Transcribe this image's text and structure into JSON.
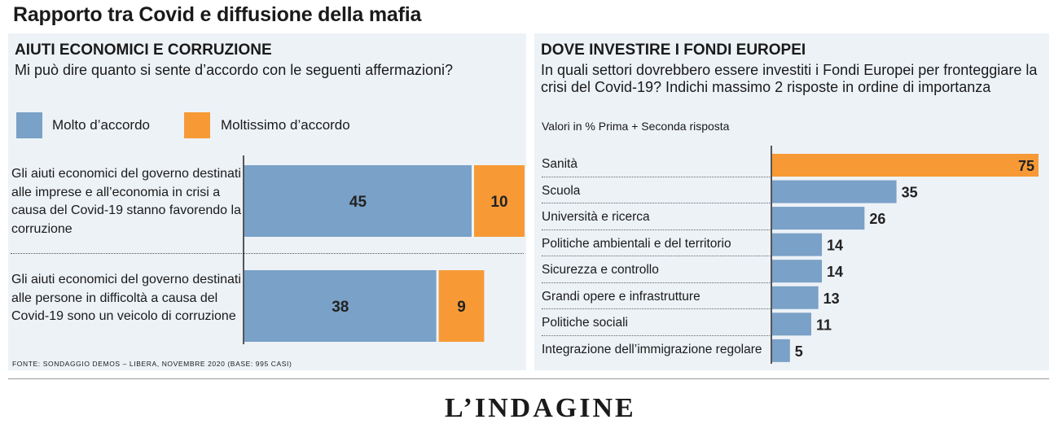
{
  "header": {
    "title": "Rapporto tra Covid e diffusione della mafia"
  },
  "colors": {
    "blue": "#7aa1c7",
    "orange": "#f79a36",
    "panel_bg": "#edf2f7"
  },
  "left": {
    "title": "AIUTI ECONOMICI E CORRUZIONE",
    "subtitle": "Mi può dire quanto si sente d’accordo con le seguenti affermazioni?",
    "source": "FONTE: SONDAGGIO DEMOS – LIBERA, NOVEMBRE 2020 (BASE: 995 CASI)"
  },
  "right": {
    "title": "DOVE INVESTIRE I FONDI EUROPEI",
    "subtitle": "In quali settori dovrebbero essere investiti i Fondi Europei per fronteggiare la crisi del Covid-19? Indichi massimo 2 risposte in ordine di importanza",
    "note": "Valori in % Prima + Seconda risposta"
  },
  "footer": {
    "cut_text": "L’INDAGINE"
  },
  "chart_data": [
    {
      "type": "bar",
      "orientation": "horizontal",
      "stacked": true,
      "title": "AIUTI ECONOMICI E CORRUZIONE",
      "subtitle": "Mi può dire quanto si sente d’accordo con le seguenti affermazioni?",
      "legend": "top-left",
      "categories": [
        "Gli aiuti economici del governo destinati alle imprese e all’economia in crisi a causa del Covid-19 stanno favorendo la corruzione",
        "Gli aiuti economici del governo destinati alle persone in difficoltà a causa del Covid-19 sono un veicolo di corruzione"
      ],
      "series": [
        {
          "name": "Molto d’accordo",
          "color": "#7aa1c7",
          "values": [
            45,
            38
          ]
        },
        {
          "name": "Moltissimo d’accordo",
          "color": "#f79a36",
          "values": [
            10,
            9
          ]
        }
      ]
    },
    {
      "type": "bar",
      "orientation": "horizontal",
      "title": "DOVE INVESTIRE I FONDI EUROPEI",
      "categories": [
        "Sanità",
        "Scuola",
        "Università e ricerca",
        "Politiche ambientali e del territorio",
        "Sicurezza e controllo",
        "Grandi opere e infrastrutture",
        "Politiche sociali",
        "Integrazione dell’immigrazione regolare"
      ],
      "values": [
        75,
        35,
        26,
        14,
        14,
        13,
        11,
        5
      ],
      "highlight_index": 0,
      "colors": {
        "default": "#7aa1c7",
        "highlight": "#f79a36"
      }
    }
  ]
}
